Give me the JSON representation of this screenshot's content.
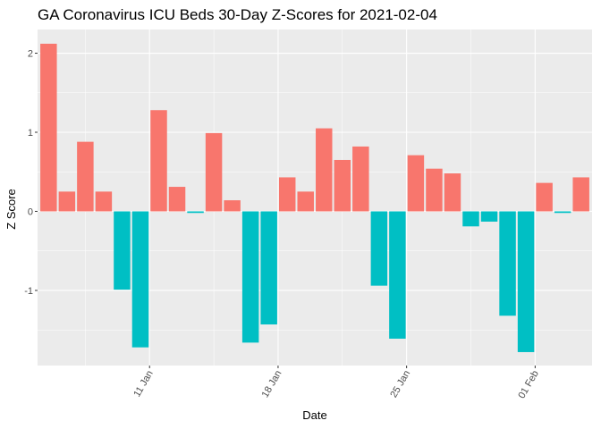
{
  "chart_data": {
    "type": "bar",
    "title": "GA Coronavirus ICU Beds 30-Day Z-Scores for 2021-02-04",
    "xlabel": "Date",
    "ylabel": "Z Score",
    "ylim": [
      -1.95,
      2.3
    ],
    "yticks": [
      -1,
      0,
      1,
      2
    ],
    "y_tick_labels": [
      "-1",
      "0",
      "1",
      "2"
    ],
    "x_tick_labels": [
      "11 Jan",
      "18 Jan",
      "25 Jan",
      "01 Feb"
    ],
    "x_tick_positions": [
      5.5,
      12.5,
      19.5,
      26.5
    ],
    "grid": true,
    "legend": "none",
    "positive_color": "#F8766D",
    "negative_color": "#00BFC4",
    "panel_color": "#EBEBEB",
    "gridline_color": "#FFFFFF",
    "values": [
      2.12,
      0.25,
      0.88,
      0.25,
      -0.99,
      -1.72,
      1.28,
      0.31,
      -0.02,
      0.99,
      0.14,
      -1.66,
      -1.43,
      0.43,
      0.25,
      1.05,
      0.65,
      0.82,
      -0.94,
      -1.61,
      0.71,
      0.54,
      0.48,
      -0.19,
      -0.13,
      -1.32,
      -1.78,
      0.36,
      -0.02,
      0.43
    ]
  }
}
